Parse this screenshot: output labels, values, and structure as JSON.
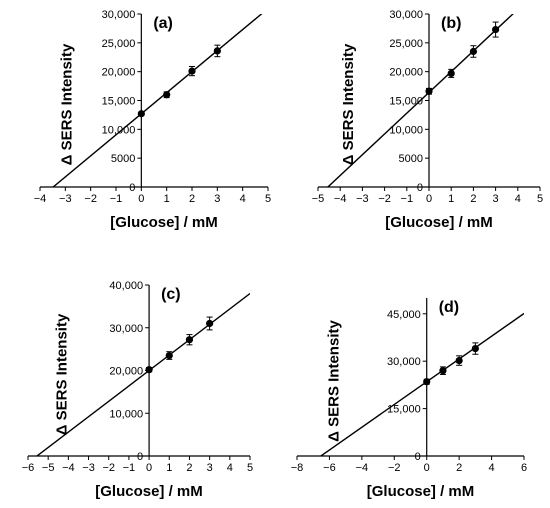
{
  "chart_data": [
    {
      "type": "scatter",
      "panel_label": "(a)",
      "xlabel": "[Glucose] / mM",
      "ylabel": "Δ SERS Intensity",
      "xlim": [
        -4,
        5
      ],
      "ylim": [
        0,
        30000
      ],
      "x_ticks": [
        "-4",
        "-3",
        "-2",
        "-1",
        "0",
        "1",
        "2",
        "3",
        "4",
        "5"
      ],
      "y_ticks": [
        "0",
        "5000",
        "10,000",
        "15,000",
        "20,000",
        "25,000",
        "30,000"
      ],
      "x": [
        0,
        1,
        2,
        3
      ],
      "y": [
        12700,
        16000,
        20100,
        23600
      ],
      "err": [
        300,
        500,
        800,
        1000
      ],
      "fit": {
        "slope": 3650,
        "intercept": 12700
      }
    },
    {
      "type": "scatter",
      "panel_label": "(b)",
      "xlabel": "[Glucose] / mM",
      "ylabel": "Δ SERS Intensity",
      "xlim": [
        -5,
        5
      ],
      "ylim": [
        0,
        30000
      ],
      "x_ticks": [
        "-5",
        "-4",
        "-3",
        "-2",
        "-1",
        "0",
        "1",
        "2",
        "3",
        "4",
        "5"
      ],
      "y_ticks": [
        "0",
        "5000",
        "10,000",
        "15,000",
        "20,000",
        "25,000",
        "30,000"
      ],
      "x": [
        0,
        1,
        2,
        3
      ],
      "y": [
        16600,
        19700,
        23500,
        27300
      ],
      "err": [
        500,
        700,
        1000,
        1300
      ],
      "fit": {
        "slope": 3600,
        "intercept": 16400
      }
    },
    {
      "type": "scatter",
      "panel_label": "(c)",
      "xlabel": "[Glucose] / mM",
      "ylabel": "Δ SERS Intensity",
      "xlim": [
        -6,
        5
      ],
      "ylim": [
        0,
        40000
      ],
      "x_ticks": [
        "-6",
        "-5",
        "-4",
        "-3",
        "-2",
        "-1",
        "0",
        "1",
        "2",
        "3",
        "4",
        "5"
      ],
      "y_ticks": [
        "0",
        "10,000",
        "20,000",
        "30,000",
        "40,000"
      ],
      "x": [
        0,
        1,
        2,
        3
      ],
      "y": [
        20200,
        23500,
        27200,
        31000
      ],
      "err": [
        500,
        900,
        1200,
        1500
      ],
      "fit": {
        "slope": 3600,
        "intercept": 20000
      }
    },
    {
      "type": "scatter",
      "panel_label": "(d)",
      "xlabel": "[Glucose] / mM",
      "ylabel": "Δ SERS Intensity",
      "xlim": [
        -8,
        6
      ],
      "ylim": [
        0,
        50000
      ],
      "x_ticks": [
        "-8",
        "-6",
        "-4",
        "-2",
        "0",
        "2",
        "4",
        "6"
      ],
      "y_ticks": [
        "0",
        "15,000",
        "30,000",
        "45,000"
      ],
      "y_tick_values": [
        0,
        15000,
        30000,
        45000
      ],
      "x_tick_values": [
        -8,
        -6,
        -4,
        -2,
        0,
        2,
        4,
        6
      ],
      "x": [
        0,
        1,
        2,
        3
      ],
      "y": [
        23500,
        27000,
        30200,
        34000
      ],
      "err": [
        800,
        1200,
        1500,
        1800
      ],
      "fit": {
        "slope": 3600,
        "intercept": 23500
      }
    }
  ]
}
